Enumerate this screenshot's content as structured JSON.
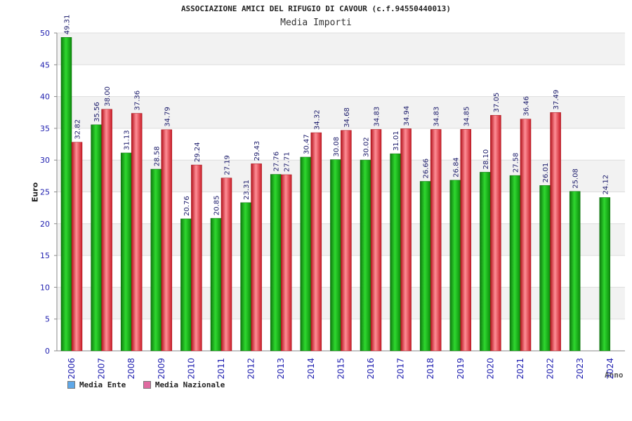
{
  "chart_data": {
    "type": "bar",
    "title": "ASSOCIAZIONE AMICI DEL RIFUGIO DI CAVOUR (c.f.94550440013)",
    "subtitle": "Media Importi",
    "ylabel": "Euro",
    "xlabel": "Anno",
    "ylim": [
      0,
      50
    ],
    "yticks": [
      0,
      5,
      10,
      15,
      20,
      25,
      30,
      35,
      40,
      45,
      50
    ],
    "grid": true,
    "legend_position": "bottom-left",
    "categories": [
      "2006",
      "2007",
      "2008",
      "2009",
      "2010",
      "2011",
      "2012",
      "2013",
      "2014",
      "2015",
      "2016",
      "2017",
      "2018",
      "2019",
      "2020",
      "2021",
      "2022",
      "2023",
      "2024"
    ],
    "series": [
      {
        "name": "Media Ente",
        "color": "#1fb51f",
        "legend_color": "#5fa8e8",
        "values": [
          49.31,
          35.56,
          31.13,
          28.58,
          20.76,
          20.85,
          23.31,
          27.76,
          30.47,
          30.08,
          30.02,
          31.01,
          26.66,
          26.84,
          28.1,
          27.58,
          26.01,
          25.08,
          24.12
        ],
        "labels": [
          "49.31",
          "35.56",
          "31.13",
          "28.58",
          "20.76",
          "20.85",
          "23.31",
          "27.76",
          "30.47",
          "30.08",
          "30.02",
          "31.01",
          "26.66",
          "26.84",
          "28.10",
          "27.58",
          "26.01",
          "25.08",
          "24.12"
        ]
      },
      {
        "name": "Media Nazionale",
        "color": "#e8303a",
        "legend_color": "#e06aa0",
        "values": [
          32.82,
          38.0,
          37.36,
          34.79,
          29.24,
          27.19,
          29.43,
          27.71,
          34.32,
          34.68,
          34.83,
          34.94,
          34.83,
          34.85,
          37.05,
          36.46,
          37.49,
          null,
          null
        ],
        "labels": [
          "32.82",
          "38.00",
          "37.36",
          "34.79",
          "29.24",
          "27.19",
          "29.43",
          "27.71",
          "34.32",
          "34.68",
          "34.83",
          "34.94",
          "34.83",
          "34.85",
          "37.05",
          "36.46",
          "37.49",
          null,
          null
        ]
      }
    ]
  },
  "colors": {
    "axis_tick_label": "#2020b0",
    "band_fill": "#f2f2f2",
    "grid_line": "#dddddd",
    "axis_line": "#888888"
  }
}
